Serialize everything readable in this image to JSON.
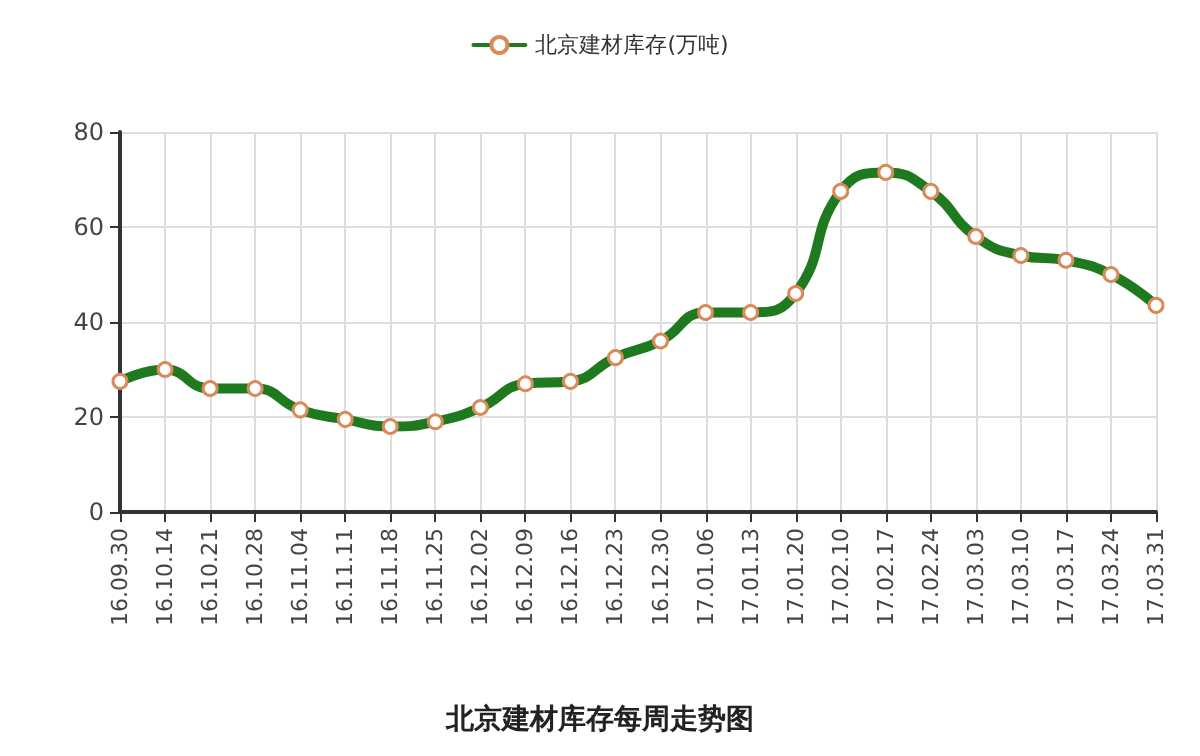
{
  "chart_data": {
    "type": "line",
    "title": "北京建材库存每周走势图",
    "categories": [
      "16.09.30",
      "16.10.14",
      "16.10.21",
      "16.10.28",
      "16.11.04",
      "16.11.11",
      "16.11.18",
      "16.11.25",
      "16.12.02",
      "16.12.09",
      "16.12.16",
      "16.12.23",
      "16.12.30",
      "17.01.06",
      "17.01.13",
      "17.01.20",
      "17.02.10",
      "17.02.17",
      "17.02.24",
      "17.03.03",
      "17.03.10",
      "17.03.17",
      "17.03.24",
      "17.03.31"
    ],
    "series": [
      {
        "name": "北京建材库存(万吨)",
        "color": "#1f7a1f",
        "values": [
          27.5,
          30,
          26,
          26,
          21.5,
          19.5,
          18,
          19,
          22,
          27,
          27.5,
          32.5,
          36,
          42,
          42,
          46,
          67.5,
          71.5,
          67.5,
          58,
          54,
          53,
          50,
          43.5
        ]
      }
    ],
    "ylim": [
      0,
      80
    ],
    "yticks": [
      0,
      20,
      40,
      60,
      80
    ],
    "grid": true,
    "legend": "top",
    "marker": "circle",
    "line_style": "solid"
  }
}
